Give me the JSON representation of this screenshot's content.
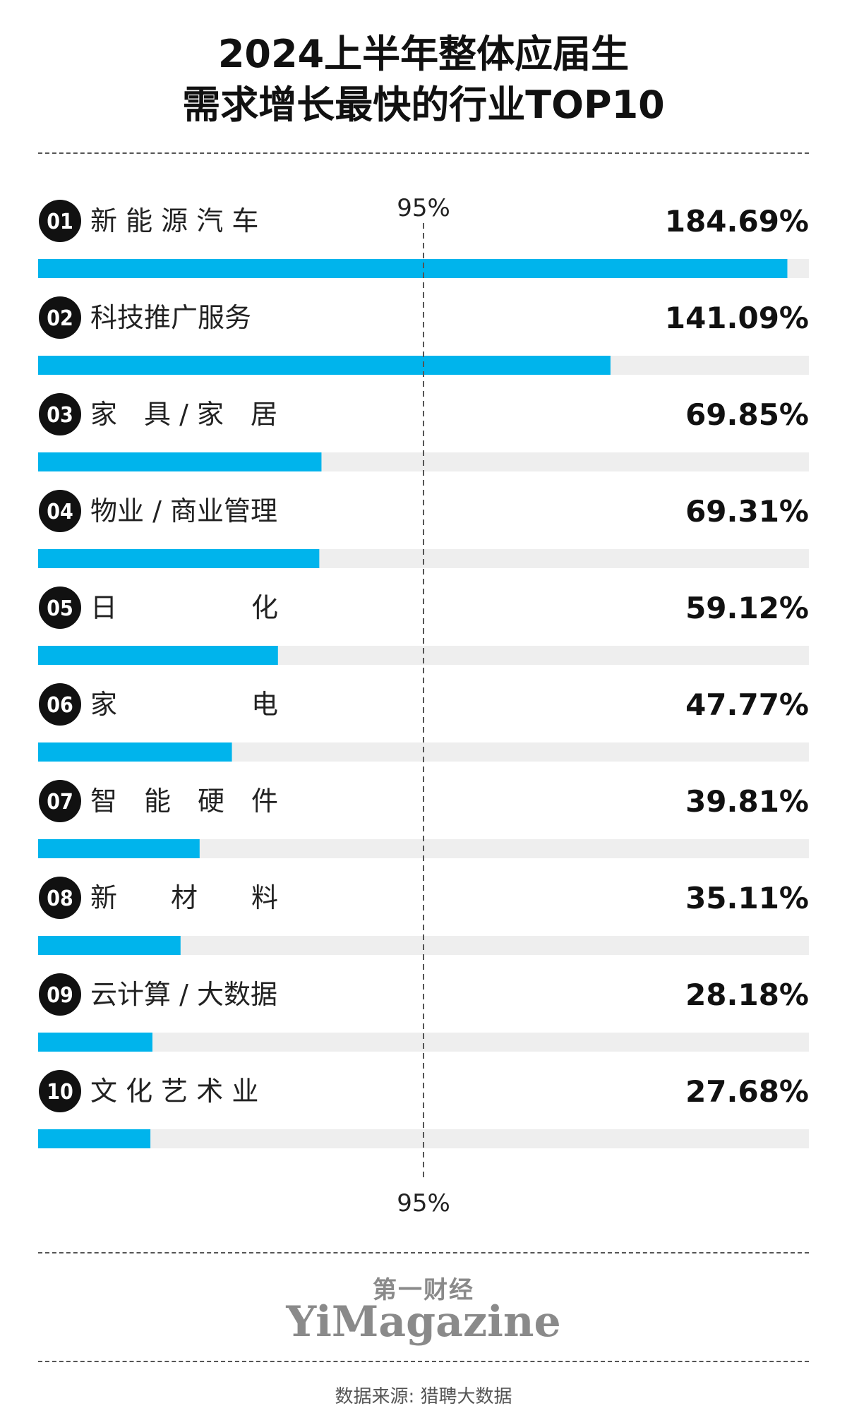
{
  "title_lines": [
    "2024上半年整体应届生",
    "需求增长最快的行业TOP10"
  ],
  "chart_data": {
    "type": "bar",
    "orientation": "horizontal",
    "title": "2024上半年整体应届生需求增长最快的行业TOP10",
    "ranks": [
      "01",
      "02",
      "03",
      "04",
      "05",
      "06",
      "07",
      "08",
      "09",
      "10"
    ],
    "categories": [
      "新能源汽车",
      "科技推广服务",
      "家具/家居",
      "物业/商业管理",
      "日化",
      "家电",
      "智能硬件",
      "新材料",
      "云计算/大数据",
      "文化艺术业"
    ],
    "display_labels": [
      "新 能 源 汽 车",
      "科技推广服务",
      "家　具 / 家　居",
      "物业 / 商业管理",
      "日　　　　　化",
      "家　　　　　电",
      "智　能　硬　件",
      "新　　材　　料",
      "云计算 / 大数据",
      "文 化 艺 术 业"
    ],
    "values": [
      184.69,
      141.09,
      69.85,
      69.31,
      59.12,
      47.77,
      39.81,
      35.11,
      28.18,
      27.68
    ],
    "value_labels": [
      "184.69%",
      "141.09%",
      "69.85%",
      "69.31%",
      "59.12%",
      "47.77%",
      "39.81%",
      "35.11%",
      "28.18%",
      "27.68%"
    ],
    "xlim": [
      0,
      190
    ],
    "reference_line": {
      "value": 95,
      "label": "95%"
    },
    "colors": {
      "bar": "#00b4ec",
      "track": "#eeeeee",
      "badge": "#111111",
      "reference": "#555555"
    }
  },
  "footer": {
    "brand_cn": "第一财经",
    "brand_en": "YiMagazine",
    "source": "数据来源: 猎聘大数据"
  }
}
